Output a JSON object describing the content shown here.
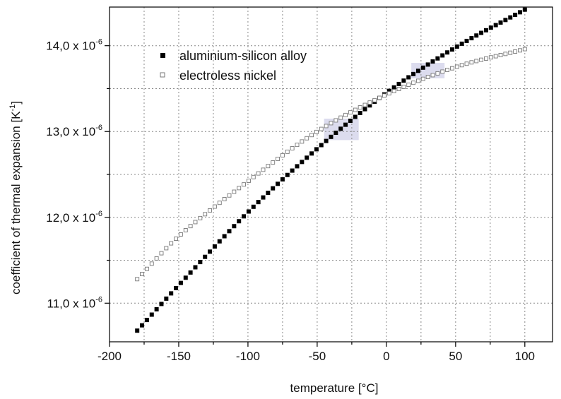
{
  "chart_data": {
    "type": "scatter",
    "xlabel": "temperature [°C]",
    "ylabel_main": "coefficient of thermal expansion [K",
    "ylabel_sup": "-1",
    "ylabel_end": "]",
    "xlim": [
      -200,
      120
    ],
    "ylim": [
      10.55,
      14.45
    ],
    "x_ticks": [
      -200,
      -150,
      -100,
      -50,
      0,
      50,
      100
    ],
    "x_tick_labels": [
      "-200",
      "-150",
      "-100",
      "-50",
      "0",
      "50",
      "100"
    ],
    "y_ticks": [
      11.0,
      12.0,
      13.0,
      14.0
    ],
    "y_tick_labels": [
      {
        "base": "11,0 x 10",
        "exp": "-6"
      },
      {
        "base": "12,0 x 10",
        "exp": "-6"
      },
      {
        "base": "13,0 x 10",
        "exp": "-6"
      },
      {
        "base": "14,0 x 10",
        "exp": "-6"
      }
    ],
    "y_unit_scale": "1e-6",
    "grid": true,
    "legend_position": "top-left",
    "highlight_bands": [
      {
        "x": [
          -45,
          -20
        ],
        "y": [
          12.9,
          13.15
        ]
      },
      {
        "x": [
          18,
          42
        ],
        "y": [
          13.62,
          13.8
        ]
      }
    ],
    "series": [
      {
        "name": "aluminium-silicon alloy",
        "marker": "filled-square",
        "color": "#000000",
        "x_start": -180,
        "x_end": 100,
        "x_step": 3.5,
        "points": [
          [
            -180,
            10.68
          ],
          [
            -150,
            11.21
          ],
          [
            -100,
            12.06
          ],
          [
            -50,
            12.8
          ],
          [
            0,
            13.45
          ],
          [
            50,
            13.98
          ],
          [
            100,
            14.42
          ]
        ]
      },
      {
        "name": "electroless nickel",
        "marker": "open-square",
        "color": "#777777",
        "x_start": -180,
        "x_end": 100,
        "x_step": 3.5,
        "points": [
          [
            -180,
            11.28
          ],
          [
            -150,
            11.78
          ],
          [
            -100,
            12.42
          ],
          [
            -50,
            13.0
          ],
          [
            0,
            13.43
          ],
          [
            50,
            13.75
          ],
          [
            100,
            13.96
          ]
        ]
      }
    ]
  }
}
